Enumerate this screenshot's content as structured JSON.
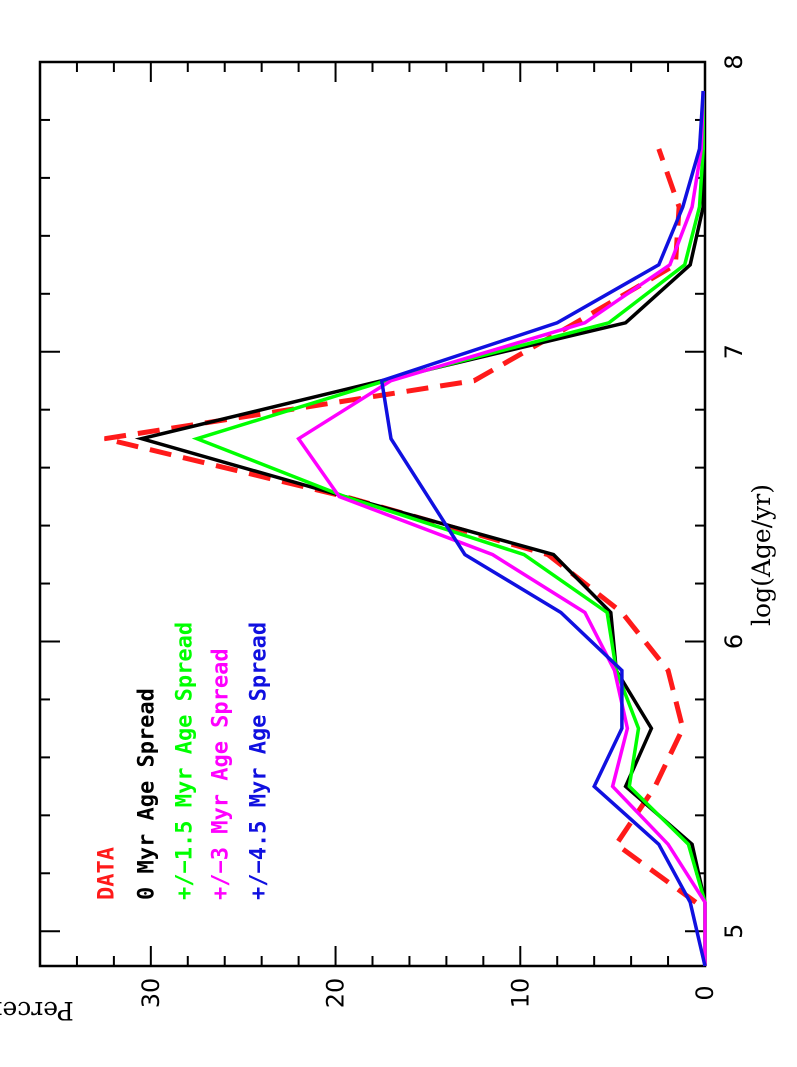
{
  "chart_data": {
    "type": "line",
    "orientation": "rotated-90-clockwise",
    "xlabel": "log(Age/yr)",
    "ylabel": "Percent",
    "xlim": [
      4.88,
      8.0
    ],
    "ylim": [
      0,
      36
    ],
    "x_ticks": [
      5,
      6,
      7,
      8
    ],
    "y_ticks": [
      0,
      10,
      20,
      30
    ],
    "series": [
      {
        "name": "DATA",
        "color": "#ff1a1a",
        "dash": true,
        "x": [
          5.1,
          5.3,
          5.5,
          5.7,
          5.9,
          6.1,
          6.3,
          6.5,
          6.7,
          6.9,
          7.1,
          7.3,
          7.5,
          7.7
        ],
        "y": [
          0.5,
          4.8,
          2.7,
          1.2,
          2.0,
          4.5,
          8.5,
          19.5,
          32.5,
          12.5,
          7.0,
          1.6,
          1.4,
          2.5
        ]
      },
      {
        "name": "0 Myr Age Spread",
        "color": "#000000",
        "dash": false,
        "x": [
          4.88,
          5.1,
          5.3,
          5.5,
          5.7,
          5.9,
          6.1,
          6.3,
          6.5,
          6.7,
          6.9,
          7.1,
          7.3,
          7.5,
          7.7,
          7.9
        ],
        "y": [
          0,
          0,
          0.7,
          4.3,
          2.9,
          4.8,
          5.1,
          8.2,
          19.5,
          30.5,
          17.5,
          4.3,
          0.8,
          0.1,
          0.1,
          0.1
        ]
      },
      {
        "name": "+/−1.5 Myr Age Spread",
        "color": "#00ff00",
        "dash": false,
        "x": [
          4.88,
          5.1,
          5.3,
          5.5,
          5.7,
          5.9,
          6.1,
          6.3,
          6.5,
          6.7,
          6.9,
          7.1,
          7.3,
          7.5,
          7.7,
          7.9
        ],
        "y": [
          0,
          0,
          0.9,
          4.1,
          3.6,
          4.8,
          5.3,
          9.8,
          19.5,
          27.5,
          17.3,
          5.2,
          1.1,
          0.3,
          0.1,
          0.1
        ]
      },
      {
        "name": "+/−3 Myr Age Spread",
        "color": "#ff00ff",
        "dash": false,
        "x": [
          4.88,
          5.1,
          5.3,
          5.5,
          5.7,
          5.9,
          6.1,
          6.3,
          6.5,
          6.7,
          6.9,
          7.1,
          7.3,
          7.5,
          7.7,
          7.9
        ],
        "y": [
          0,
          0,
          2.0,
          5.0,
          4.2,
          4.9,
          6.5,
          11.5,
          19.8,
          22.0,
          17.0,
          6.5,
          1.9,
          0.7,
          0.2,
          0.1
        ]
      },
      {
        "name": "+/−4.5 Myr Age Spread",
        "color": "#1010e0",
        "dash": false,
        "x": [
          4.88,
          5.1,
          5.3,
          5.5,
          5.7,
          5.9,
          6.1,
          6.3,
          6.5,
          6.7,
          6.9,
          7.1,
          7.3,
          7.5,
          7.7,
          7.9
        ],
        "y": [
          0,
          0.8,
          2.5,
          6.0,
          4.5,
          4.5,
          7.8,
          13.0,
          15.0,
          17.0,
          17.5,
          8.0,
          2.5,
          1.2,
          0.3,
          0.1
        ]
      }
    ]
  }
}
